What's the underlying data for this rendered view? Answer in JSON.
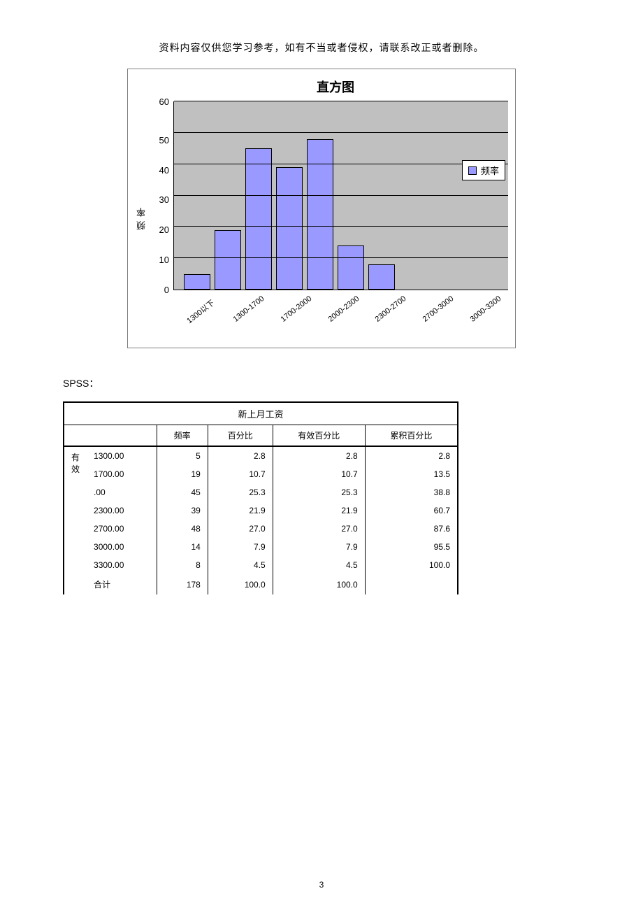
{
  "header_note": "资料内容仅供您学习参考，如有不当或者侵权，请联系改正或者删除。",
  "chart": {
    "type": "bar",
    "title": "直方图",
    "y_axis_label": "频率",
    "legend_label": "频率",
    "bar_color": "#9999ff",
    "bar_border": "#000000",
    "plot_bg": "#c0c0c0",
    "grid_color": "#000000",
    "ylim_max": 60,
    "ylim_min": 0,
    "ytick_step": 10,
    "yticks": [
      "60",
      "50",
      "40",
      "30",
      "20",
      "10",
      "0"
    ],
    "categories": [
      "1300以下",
      "1300-1700",
      "1700-2000",
      "2000-2300",
      "2300-2700",
      "2700-3000",
      "3000-3300"
    ],
    "values": [
      5,
      19,
      45,
      39,
      48,
      14,
      8
    ]
  },
  "spss_label": "SPSS：",
  "table": {
    "title": "新上月工资",
    "columns": [
      "频率",
      "百分比",
      "有效百分比",
      "累积百分比"
    ],
    "row_group_label": "有效",
    "rows": [
      {
        "cat": "1300.00",
        "freq": "5",
        "pct": "2.8",
        "vpct": "2.8",
        "cpct": "2.8"
      },
      {
        "cat": "1700.00",
        "freq": "19",
        "pct": "10.7",
        "vpct": "10.7",
        "cpct": "13.5"
      },
      {
        "cat": ".00",
        "freq": "45",
        "pct": "25.3",
        "vpct": "25.3",
        "cpct": "38.8"
      },
      {
        "cat": "2300.00",
        "freq": "39",
        "pct": "21.9",
        "vpct": "21.9",
        "cpct": "60.7"
      },
      {
        "cat": "2700.00",
        "freq": "48",
        "pct": "27.0",
        "vpct": "27.0",
        "cpct": "87.6"
      },
      {
        "cat": "3000.00",
        "freq": "14",
        "pct": "7.9",
        "vpct": "7.9",
        "cpct": "95.5"
      },
      {
        "cat": "3300.00",
        "freq": "8",
        "pct": "4.5",
        "vpct": "4.5",
        "cpct": "100.0"
      },
      {
        "cat": "合计",
        "freq": "178",
        "pct": "100.0",
        "vpct": "100.0",
        "cpct": ""
      }
    ]
  },
  "page_number": "3"
}
